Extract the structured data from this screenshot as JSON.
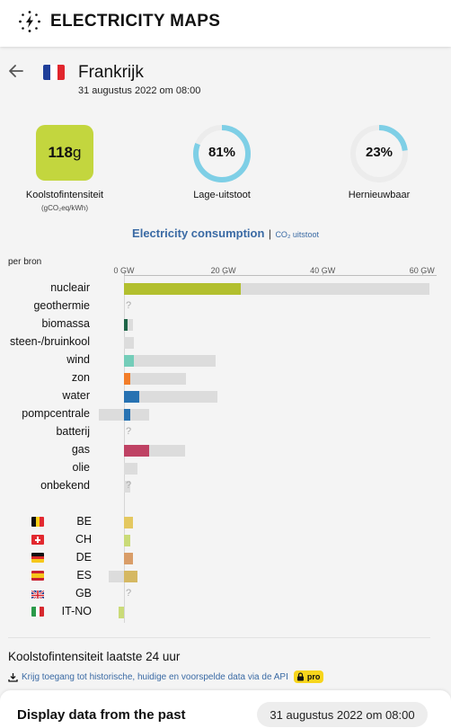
{
  "header": {
    "logo_text": "ELECTRICITY MAPS"
  },
  "zone": {
    "name": "Frankrijk",
    "datetime": "31 augustus 2022 om 08:00"
  },
  "metrics": {
    "carbon_value": "118",
    "carbon_unit": "g",
    "carbon_label": "Koolstofintensiteit",
    "carbon_sub": "(gCO₂eq/kWh)",
    "low_carbon_value": "81%",
    "low_carbon_fraction": 0.81,
    "low_carbon_label": "Lage-uitstoot",
    "renewable_value": "23%",
    "renewable_fraction": 0.23,
    "renewable_label": "Hernieuwbaar"
  },
  "chart": {
    "title": "Electricity consumption",
    "separator": "|",
    "co2_link": "CO₂ uitstoot",
    "group_label": "per bron",
    "ticks": [
      "0 GW",
      "20 GW",
      "40 GW",
      "60 GW"
    ]
  },
  "chart_data": {
    "type": "bar",
    "title": "Electricity consumption",
    "xlabel": "GW",
    "xlim": [
      -5,
      62
    ],
    "sources": [
      {
        "name": "nucleair",
        "value": 23.5,
        "capacity": 61.5,
        "color": "#b2bf2e"
      },
      {
        "name": "geothermie",
        "value": null,
        "capacity": null,
        "color": "#cccccc"
      },
      {
        "name": "biomassa",
        "value": 0.8,
        "capacity": 1.8,
        "color": "#1e6447"
      },
      {
        "name": "steen-/bruinkool",
        "value": 0,
        "capacity": 2.0,
        "color": "#555555"
      },
      {
        "name": "wind",
        "value": 2.0,
        "capacity": 18.5,
        "color": "#74cdb9"
      },
      {
        "name": "zon",
        "value": 1.2,
        "capacity": 12.5,
        "color": "#f27d29"
      },
      {
        "name": "water",
        "value": 3.0,
        "capacity": 18.8,
        "color": "#2772b2"
      },
      {
        "name": "pompcentrale",
        "value": 1.3,
        "capacity": 5.0,
        "negative_capacity": -5.0,
        "color": "#2772b2"
      },
      {
        "name": "batterij",
        "value": null,
        "capacity": null,
        "color": "#b76fd4"
      },
      {
        "name": "gas",
        "value": 5.0,
        "capacity": 12.3,
        "color": "#bf4264"
      },
      {
        "name": "olie",
        "value": 0,
        "capacity": 2.8,
        "color": "#867d66"
      },
      {
        "name": "onbekend",
        "value": null,
        "capacity": 1.2,
        "color": "#aaaaaa"
      }
    ],
    "exchanges": [
      {
        "code": "BE",
        "value": 1.8,
        "color": "#e4c860"
      },
      {
        "code": "CH",
        "value": 1.2,
        "color": "#cadb78"
      },
      {
        "code": "DE",
        "value": 1.8,
        "color": "#d99d68"
      },
      {
        "code": "ES",
        "value": 2.8,
        "negative_capacity": -3.0,
        "color": "#d5b862"
      },
      {
        "code": "GB",
        "value": null,
        "color": "#aaaaaa"
      },
      {
        "code": "IT-NO",
        "value": -1.0,
        "color": "#cadb78"
      }
    ]
  },
  "history": {
    "title": "Koolstofintensiteit laatste 24 uur",
    "api_text": "Krijg toegang tot historische, huidige en voorspelde data via de API",
    "pro_label": "pro"
  },
  "footer": {
    "title": "Display data from the past",
    "date": "31 augustus 2022 om 08:00"
  },
  "unknown_marker": "?"
}
